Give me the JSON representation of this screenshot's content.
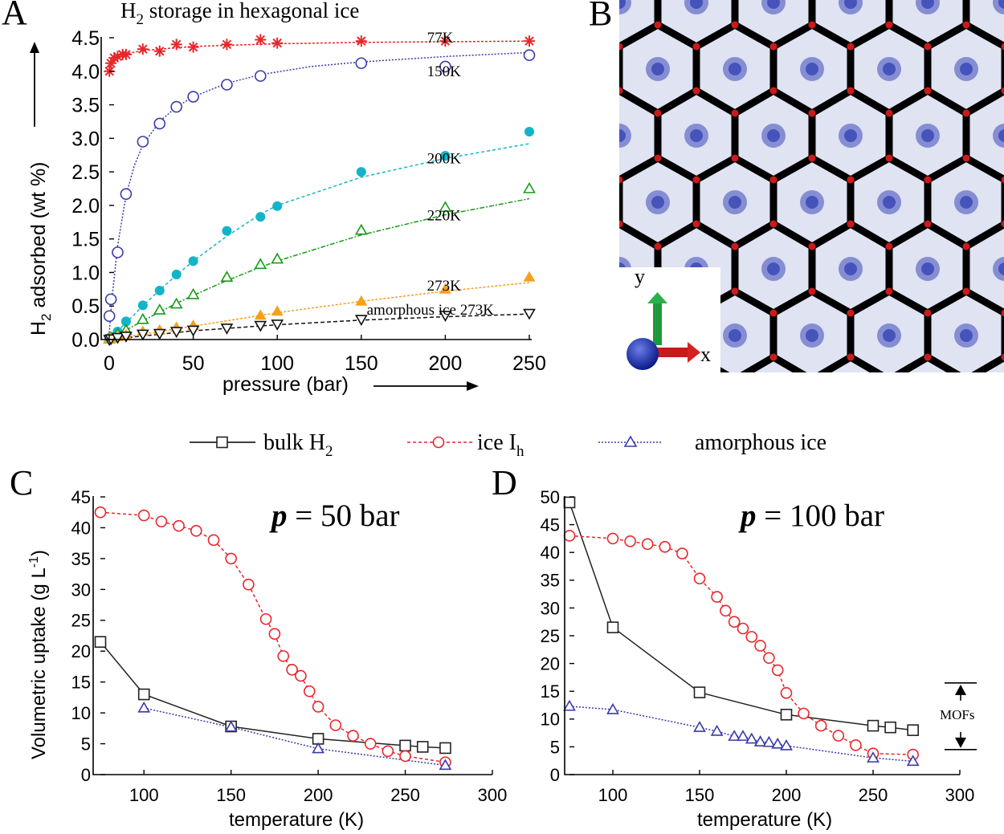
{
  "panels": {
    "a_letter": "A",
    "b_letter": "B",
    "c_letter": "C",
    "d_letter": "D"
  },
  "colors": {
    "c77": "#e8262b",
    "c150": "#3a3aaa",
    "c200": "#12b5c8",
    "c220": "#1a9a1a",
    "c273": "#f5a01b",
    "camorph": "#111111",
    "bulk": "#222222",
    "ice": "#e8262b",
    "amorph": "#3a3aaa"
  },
  "panel_b": {
    "axis_y": "y",
    "axis_x": "x"
  },
  "legend_cd": {
    "bulk": "bulk H",
    "bulk_sub": "2",
    "ice": "ice I",
    "ice_sub": "h",
    "amorph": "amorphous ice"
  },
  "mofs_label": "MOFs",
  "chart_data": [
    {
      "type": "scatter",
      "title": "H",
      "title_sub": "2",
      "title_rest": " storage in hexagonal ice",
      "xlabel": "pressure (bar)",
      "ylabel_pre": "H",
      "ylabel_sub": "2",
      "ylabel_post": " adsorbed (wt %)",
      "xlim": [
        0,
        250
      ],
      "ylim": [
        0,
        4.5
      ],
      "xticks": [
        "0",
        "50",
        "100",
        "150",
        "200",
        "250"
      ],
      "yticks": [
        "0.0",
        "0.5",
        "1.0",
        "1.5",
        "2.0",
        "2.5",
        "3.0",
        "3.5",
        "4.0",
        "4.5"
      ],
      "series": [
        {
          "name": "77K",
          "marker": "star",
          "color": "#e8262b",
          "x": [
            0.1,
            1,
            3,
            5,
            8,
            10,
            20,
            30,
            40,
            50,
            70,
            90,
            100,
            150,
            200,
            250
          ],
          "y": [
            4.0,
            4.12,
            4.2,
            4.22,
            4.25,
            4.25,
            4.33,
            4.3,
            4.4,
            4.36,
            4.4,
            4.47,
            4.42,
            4.45,
            4.45,
            4.45
          ],
          "fit": [
            [
              0,
              3.99
            ],
            [
              2,
              4.12
            ],
            [
              5,
              4.2
            ],
            [
              10,
              4.26
            ],
            [
              20,
              4.31
            ],
            [
              50,
              4.37
            ],
            [
              100,
              4.41
            ],
            [
              150,
              4.43
            ],
            [
              200,
              4.44
            ],
            [
              250,
              4.45
            ]
          ]
        },
        {
          "name": "150K",
          "marker": "circle-open",
          "color": "#3a3aaa",
          "x": [
            0.1,
            1,
            5,
            10,
            20,
            30,
            40,
            50,
            70,
            90,
            150,
            200,
            250
          ],
          "y": [
            0.35,
            0.6,
            1.3,
            2.17,
            2.95,
            3.22,
            3.47,
            3.62,
            3.8,
            3.93,
            4.12,
            4.07,
            4.24
          ],
          "fit": [
            [
              0,
              0.1
            ],
            [
              2,
              0.7
            ],
            [
              5,
              1.4
            ],
            [
              10,
              2.15
            ],
            [
              15,
              2.6
            ],
            [
              20,
              2.9
            ],
            [
              30,
              3.25
            ],
            [
              40,
              3.47
            ],
            [
              50,
              3.62
            ],
            [
              70,
              3.82
            ],
            [
              90,
              3.95
            ],
            [
              120,
              4.07
            ],
            [
              150,
              4.14
            ],
            [
              200,
              4.22
            ],
            [
              250,
              4.28
            ]
          ]
        },
        {
          "name": "200K",
          "marker": "circle-filled",
          "color": "#12b5c8",
          "x": [
            0.1,
            1,
            5,
            10,
            20,
            30,
            40,
            50,
            70,
            90,
            100,
            150,
            200,
            250
          ],
          "y": [
            0.02,
            0.04,
            0.12,
            0.27,
            0.51,
            0.73,
            0.97,
            1.17,
            1.62,
            1.83,
            1.99,
            2.5,
            2.74,
            3.1
          ],
          "fit": [
            [
              0,
              0
            ],
            [
              10,
              0.25
            ],
            [
              20,
              0.5
            ],
            [
              30,
              0.74
            ],
            [
              40,
              0.96
            ],
            [
              50,
              1.17
            ],
            [
              70,
              1.54
            ],
            [
              90,
              1.87
            ],
            [
              100,
              2.0
            ],
            [
              150,
              2.42
            ],
            [
              200,
              2.7
            ],
            [
              250,
              2.92
            ]
          ]
        },
        {
          "name": "220K",
          "marker": "triangle-open",
          "color": "#1a9a1a",
          "x": [
            0.1,
            1,
            5,
            10,
            20,
            30,
            40,
            50,
            70,
            90,
            100,
            150,
            200,
            250
          ],
          "y": [
            0.01,
            0.03,
            0.08,
            0.14,
            0.3,
            0.44,
            0.53,
            0.67,
            0.93,
            1.12,
            1.2,
            1.63,
            1.97,
            2.25
          ],
          "fit": [
            [
              0,
              0
            ],
            [
              10,
              0.14
            ],
            [
              20,
              0.28
            ],
            [
              30,
              0.41
            ],
            [
              40,
              0.54
            ],
            [
              50,
              0.66
            ],
            [
              70,
              0.88
            ],
            [
              90,
              1.08
            ],
            [
              100,
              1.17
            ],
            [
              150,
              1.56
            ],
            [
              200,
              1.86
            ],
            [
              250,
              2.1
            ]
          ]
        },
        {
          "name": "273K",
          "marker": "triangle-filled",
          "color": "#f5a01b",
          "x": [
            0.1,
            1,
            5,
            10,
            20,
            30,
            40,
            50,
            90,
            100,
            150,
            200,
            250
          ],
          "y": [
            0.01,
            0.02,
            0.04,
            0.07,
            0.12,
            0.14,
            0.18,
            0.21,
            0.36,
            0.42,
            0.57,
            0.75,
            0.93
          ],
          "fit": [
            [
              0,
              0
            ],
            [
              50,
              0.2
            ],
            [
              100,
              0.4
            ],
            [
              150,
              0.57
            ],
            [
              200,
              0.72
            ],
            [
              250,
              0.85
            ]
          ]
        },
        {
          "name": "amorphous ice 273K",
          "marker": "triangle-down-open",
          "color": "#111111",
          "x": [
            0.1,
            1,
            5,
            10,
            20,
            30,
            40,
            50,
            70,
            90,
            100,
            150,
            200,
            250
          ],
          "y": [
            0.0,
            0.01,
            0.03,
            0.05,
            0.08,
            0.09,
            0.12,
            0.14,
            0.17,
            0.21,
            0.23,
            0.3,
            0.36,
            0.39
          ],
          "fit": [
            [
              0,
              0
            ],
            [
              50,
              0.13
            ],
            [
              100,
              0.22
            ],
            [
              150,
              0.29
            ],
            [
              200,
              0.34
            ],
            [
              250,
              0.38
            ]
          ]
        }
      ],
      "curve_labels": [
        {
          "text": "77K",
          "x": 170,
          "y": 4.5
        },
        {
          "text": "150K",
          "x": 170,
          "y": 4.0
        },
        {
          "text": "200K",
          "x": 170,
          "y": 2.7
        },
        {
          "text": "220K",
          "x": 170,
          "y": 1.85
        },
        {
          "text": "273K",
          "x": 170,
          "y": 0.8
        },
        {
          "text": "amorphous ice 273K",
          "x": 170,
          "y": 0.44
        }
      ]
    },
    {
      "type": "line",
      "annotation_var": "p",
      "annotation_rest": " = 50 bar",
      "xlabel": "temperature (K)",
      "ylabel_pre": "Volumetric uptake (g L",
      "ylabel_sup": "-1",
      "ylabel_post": ")",
      "xlim": [
        75,
        300
      ],
      "ylim": [
        0,
        45
      ],
      "xticks": [
        "100",
        "150",
        "200",
        "250",
        "300"
      ],
      "yticks": [
        "0",
        "5",
        "10",
        "15",
        "20",
        "25",
        "30",
        "35",
        "40",
        "45"
      ],
      "series": [
        {
          "name": "bulk H2",
          "marker": "square",
          "color": "#222222",
          "dash": "",
          "x": [
            75,
            100,
            150,
            200,
            250,
            260,
            273
          ],
          "y": [
            21.5,
            13.0,
            7.8,
            5.8,
            4.7,
            4.5,
            4.3
          ]
        },
        {
          "name": "ice Ih",
          "marker": "circle-open",
          "color": "#e8262b",
          "dash": "4,3",
          "x": [
            75,
            100,
            110,
            120,
            130,
            140,
            150,
            160,
            170,
            175,
            180,
            185,
            190,
            195,
            200,
            210,
            220,
            230,
            240,
            250,
            273
          ],
          "y": [
            42.5,
            42.0,
            41.0,
            40.3,
            39.5,
            38.0,
            35.0,
            30.8,
            25.2,
            22.8,
            19.2,
            17.0,
            16.0,
            13.5,
            11.0,
            8.0,
            6.3,
            5.0,
            3.8,
            3.0,
            2.0
          ]
        },
        {
          "name": "amorphous ice",
          "marker": "triangle-open",
          "color": "#3a3aaa",
          "dash": "2,2",
          "x": [
            100,
            150,
            200,
            273
          ],
          "y": [
            10.8,
            7.7,
            4.2,
            1.5
          ]
        }
      ]
    },
    {
      "type": "line",
      "annotation_var": "p",
      "annotation_rest": " = 100 bar",
      "xlabel": "temperature (K)",
      "xlim": [
        75,
        300
      ],
      "ylim": [
        0,
        50
      ],
      "xticks": [
        "100",
        "150",
        "200",
        "250",
        "300"
      ],
      "yticks": [
        "0",
        "5",
        "10",
        "15",
        "20",
        "25",
        "30",
        "35",
        "40",
        "45",
        "50"
      ],
      "mofs_range": [
        4.5,
        16.5
      ],
      "series": [
        {
          "name": "bulk H2",
          "marker": "square",
          "color": "#222222",
          "dash": "",
          "x": [
            75,
            100,
            150,
            200,
            250,
            260,
            273
          ],
          "y": [
            49.0,
            26.5,
            14.8,
            10.8,
            8.8,
            8.5,
            8.0
          ]
        },
        {
          "name": "ice Ih",
          "marker": "circle-open",
          "color": "#e8262b",
          "dash": "4,3",
          "x": [
            75,
            100,
            110,
            120,
            130,
            140,
            150,
            160,
            165,
            170,
            175,
            180,
            185,
            190,
            195,
            200,
            210,
            220,
            230,
            240,
            250,
            273
          ],
          "y": [
            43.0,
            42.5,
            42.0,
            41.5,
            41.0,
            39.8,
            35.3,
            32.0,
            29.5,
            27.5,
            26.3,
            24.8,
            23.2,
            21.0,
            18.8,
            14.7,
            11.0,
            8.8,
            7.0,
            5.3,
            3.8,
            3.6
          ]
        },
        {
          "name": "amorphous ice",
          "marker": "triangle-open",
          "color": "#3a3aaa",
          "dash": "2,2",
          "x": [
            75,
            100,
            150,
            160,
            170,
            175,
            180,
            185,
            190,
            195,
            200,
            250,
            273
          ],
          "y": [
            12.3,
            11.7,
            8.5,
            7.8,
            6.9,
            6.9,
            6.4,
            5.9,
            5.8,
            5.5,
            5.2,
            3.0,
            2.4
          ]
        }
      ]
    }
  ]
}
